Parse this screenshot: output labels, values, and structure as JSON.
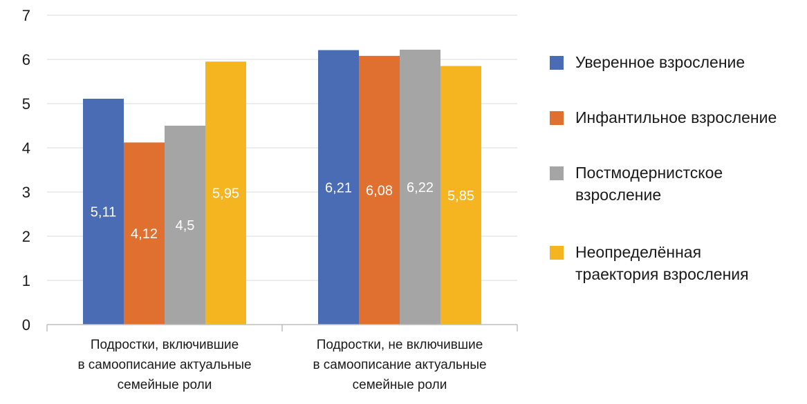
{
  "chart_data": {
    "type": "bar",
    "categories": [
      "Подростки, включившие\nв самоописание актуальные\nсемейные роли",
      "Подростки, не включившие\nв самоописание актуальные\nсемейные роли"
    ],
    "series": [
      {
        "name": "Уверенное взросление",
        "values": [
          5.11,
          6.21
        ],
        "labels": [
          "5,11",
          "6,21"
        ],
        "color": "#4a6cb5"
      },
      {
        "name": "Инфантильное взросление",
        "values": [
          4.12,
          6.08
        ],
        "labels": [
          "4,12",
          "6,08"
        ],
        "color": "#e07030"
      },
      {
        "name": "Постмодернистское\nвзросление",
        "values": [
          4.5,
          6.22
        ],
        "labels": [
          "4,5",
          "6,22"
        ],
        "color": "#a5a5a5"
      },
      {
        "name": "Неопределённая\nтраектория взросления",
        "values": [
          5.95,
          5.85
        ],
        "labels": [
          "5,95",
          "5,85"
        ],
        "color": "#f4b520"
      }
    ],
    "ylim": [
      0,
      7
    ],
    "yticks": [
      "0",
      "1",
      "2",
      "3",
      "4",
      "5",
      "6",
      "7"
    ],
    "grid": true,
    "legend_position": "right"
  }
}
